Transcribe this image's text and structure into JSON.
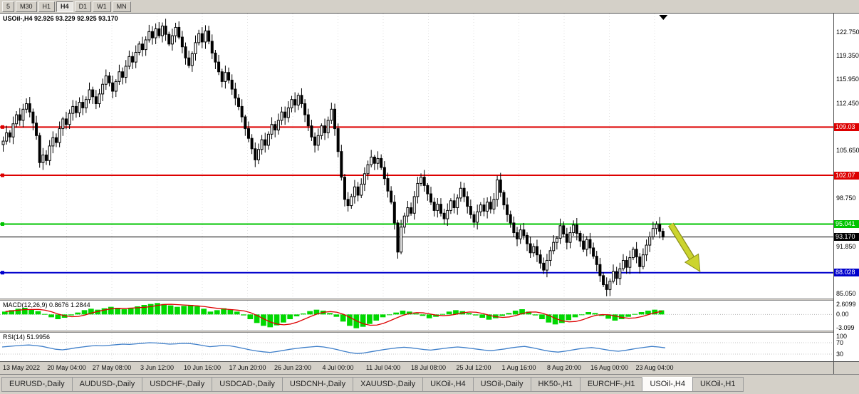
{
  "toolbar": {
    "timeframes": [
      "5",
      "M30",
      "H1",
      "H4",
      "D1",
      "W1",
      "MN"
    ],
    "active": "H4"
  },
  "chart": {
    "title": "USOil-,H4 92.926 93.229 92.925 93.170"
  },
  "chart_data": {
    "type": "candlestick",
    "symbol": "USOil-",
    "timeframe": "H4",
    "ohlc_current": {
      "open": 92.926,
      "high": 93.229,
      "low": 92.925,
      "close": 93.17
    },
    "ylim": [
      84.3,
      125.4
    ],
    "price_axis_ticks": [
      122.75,
      119.35,
      115.95,
      112.45,
      105.65,
      98.75,
      91.85,
      85.05
    ],
    "hlines": [
      {
        "price": 109.03,
        "label": "109.03",
        "color": "#dd0000",
        "width": 2
      },
      {
        "price": 102.07,
        "label": "102.07",
        "color": "#dd0000",
        "width": 2
      },
      {
        "price": 95.041,
        "label": "95.041",
        "color": "#00c400",
        "width": 2
      },
      {
        "price": 93.17,
        "label": "93.170",
        "color": "#000000",
        "width": 1
      },
      {
        "price": 88.028,
        "label": "88.028",
        "color": "#0000cc",
        "width": 2
      }
    ],
    "x_time_labels": [
      "13 May 2022",
      "20 May 04:00",
      "27 May 08:00",
      "3 Jun 12:00",
      "10 Jun 16:00",
      "17 Jun 20:00",
      "26 Jun 23:00",
      "4 Jul 00:00",
      "11 Jul 04:00",
      "18 Jul 08:00",
      "25 Jul 12:00",
      "1 Aug 16:00",
      "8 Aug 20:00",
      "16 Aug 00:00",
      "23 Aug 04:00"
    ],
    "closes": [
      107.0,
      108.2,
      107.6,
      109.5,
      110.8,
      110.0,
      111.6,
      112.4,
      111.2,
      109.6,
      107.8,
      103.9,
      105.0,
      104.2,
      106.3,
      107.5,
      106.8,
      108.8,
      110.2,
      109.4,
      111.0,
      112.0,
      111.1,
      112.6,
      111.8,
      113.0,
      114.4,
      113.4,
      112.4,
      113.8,
      115.2,
      116.4,
      115.4,
      114.2,
      115.6,
      117.0,
      116.2,
      117.8,
      119.2,
      118.4,
      119.8,
      121.0,
      120.2,
      121.6,
      122.8,
      121.9,
      123.2,
      122.2,
      123.6,
      122.4,
      121.0,
      122.2,
      123.4,
      122.0,
      120.6,
      119.0,
      117.9,
      119.6,
      121.2,
      122.5,
      121.3,
      122.9,
      121.4,
      119.7,
      118.4,
      117.0,
      115.6,
      116.9,
      115.8,
      114.5,
      113.2,
      112.0,
      110.5,
      108.8,
      107.4,
      105.9,
      104.3,
      105.8,
      107.2,
      106.4,
      108.0,
      109.4,
      108.6,
      110.0,
      111.2,
      110.4,
      111.8,
      113.0,
      112.2,
      113.6,
      112.4,
      110.8,
      109.2,
      107.6,
      106.4,
      107.8,
      109.2,
      108.2,
      110.0,
      111.6,
      108.8,
      105.5,
      101.8,
      98.6,
      97.7,
      99.0,
      100.4,
      99.2,
      100.8,
      102.3,
      103.6,
      104.7,
      103.8,
      104.5,
      103.2,
      101.6,
      99.8,
      98.2,
      95.2,
      91.0,
      94.6,
      96.2,
      97.4,
      96.6,
      99.0,
      100.9,
      101.8,
      100.6,
      99.4,
      98.2,
      97.0,
      97.9,
      96.6,
      95.8,
      97.0,
      98.4,
      97.4,
      98.8,
      100.2,
      99.0,
      97.6,
      96.4,
      95.3,
      96.8,
      97.8,
      96.9,
      98.2,
      97.2,
      98.6,
      101.4,
      99.6,
      97.8,
      96.4,
      95.2,
      93.8,
      92.9,
      94.2,
      93.4,
      92.2,
      90.9,
      91.8,
      90.6,
      89.4,
      88.4,
      89.8,
      91.2,
      92.4,
      93.0,
      94.8,
      93.6,
      92.4,
      93.8,
      94.9,
      93.7,
      92.6,
      91.4,
      92.8,
      91.6,
      90.4,
      89.2,
      87.6,
      86.3,
      85.6,
      86.8,
      88.2,
      87.2,
      88.6,
      89.8,
      88.8,
      90.2,
      91.4,
      90.3,
      88.9,
      90.6,
      92.0,
      93.2,
      94.4,
      95.0,
      94.0,
      93.17
    ],
    "indicators": {
      "macd": {
        "title": "MACD(12,26,9) 0.8676 1.2844",
        "params": "12,26,9",
        "value_main": 0.8676,
        "value_signal": 1.2844,
        "ylim": [
          -3.4,
          2.9
        ],
        "axis_ticks": [
          {
            "label": "2.6099",
            "value": 2.6099
          },
          {
            "label": "0.00",
            "value": 0
          },
          {
            "label": "-3.099",
            "value": -3.099
          }
        ],
        "histogram_color": "#00d800",
        "signal_color": "#dd0000",
        "histogram": [
          0.6,
          0.9,
          1.2,
          1.4,
          1.1,
          0.7,
          0.1,
          -0.6,
          -1.0,
          -0.7,
          -0.2,
          0.4,
          0.9,
          1.2,
          1.0,
          1.3,
          1.6,
          1.4,
          1.1,
          1.3,
          1.7,
          2.0,
          2.2,
          2.4,
          2.2,
          1.9,
          1.6,
          1.8,
          2.0,
          1.7,
          1.2,
          0.6,
          0.9,
          1.3,
          1.1,
          0.6,
          -0.2,
          -1.0,
          -1.8,
          -2.4,
          -2.7,
          -2.3,
          -1.7,
          -1.0,
          -0.4,
          0.2,
          0.7,
          1.0,
          0.8,
          0.3,
          -0.5,
          -1.5,
          -2.4,
          -2.9,
          -2.6,
          -2.0,
          -1.3,
          -0.6,
          -0.1,
          0.4,
          0.8,
          0.6,
          0.2,
          -0.3,
          -0.8,
          -0.5,
          0.1,
          0.6,
          0.9,
          0.7,
          0.3,
          -0.2,
          -0.7,
          -1.1,
          -0.8,
          -0.3,
          0.3,
          0.8,
          1.1,
          0.6,
          -0.2,
          -1.0,
          -1.7,
          -2.1,
          -1.8,
          -1.2,
          -0.6,
          0.0,
          0.5,
          0.3,
          -0.3,
          -0.9,
          -1.3,
          -1.0,
          -0.5,
          0.1,
          0.5,
          0.8,
          1.0,
          0.87
        ]
      },
      "rsi": {
        "title": "RSI(14) 51.9956",
        "value": 51.9956,
        "ylim": [
          5,
          105
        ],
        "axis_ticks": [
          {
            "label": "100",
            "value": 100
          },
          {
            "label": "70",
            "value": 70
          },
          {
            "label": "30",
            "value": 30
          }
        ],
        "levels": [
          70,
          30
        ],
        "line_color": "#3f7fc9",
        "values": [
          55,
          57,
          59,
          61,
          62,
          60,
          57,
          52,
          47,
          45,
          48,
          52,
          55,
          58,
          60,
          59,
          61,
          63,
          65,
          64,
          66,
          68,
          70,
          69,
          67,
          65,
          66,
          68,
          67,
          64,
          60,
          56,
          58,
          61,
          59,
          55,
          50,
          45,
          41,
          38,
          36,
          39,
          43,
          47,
          50,
          53,
          55,
          57,
          55,
          51,
          46,
          40,
          35,
          32,
          34,
          38,
          42,
          46,
          49,
          52,
          54,
          52,
          49,
          46,
          44,
          47,
          50,
          53,
          55,
          53,
          50,
          47,
          44,
          42,
          45,
          48,
          52,
          55,
          57,
          53,
          48,
          43,
          39,
          37,
          40,
          44,
          48,
          51,
          53,
          50,
          46,
          42,
          40,
          43,
          47,
          51,
          54,
          57,
          55,
          52
        ]
      }
    },
    "annotations": [
      {
        "type": "arrow",
        "name": "sell-arrow",
        "color": "#ccd42e",
        "outline": "#8a8f1a",
        "from_frac": [
          0.805,
          0.74
        ],
        "to_frac": [
          0.84,
          0.905
        ]
      }
    ],
    "end_marker_frac": 0.796
  },
  "tabs": {
    "active_index": 10,
    "items": [
      "EURUSD-,Daily",
      "AUDUSD-,Daily",
      "USDCHF-,Daily",
      "USDCAD-,Daily",
      "USDCNH-,Daily",
      "XAUUSD-,Daily",
      "UKOil-,H4",
      "USOil-,Daily",
      "HK50-,H1",
      "EURCHF-,H1",
      "USOil-,H4",
      "UKOil-,H1"
    ]
  }
}
